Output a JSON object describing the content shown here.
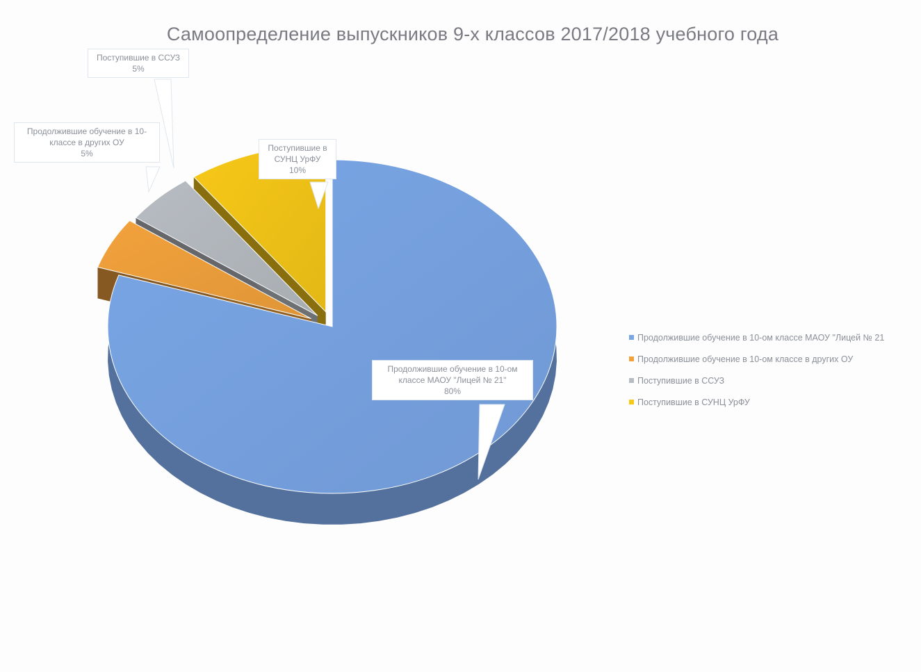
{
  "chart_data": {
    "type": "pie",
    "title": "Самоопределение выпускников 9-х классов 2017/2018  учебного года",
    "three_d": true,
    "slices": [
      {
        "label": "Продолжившие обучение в 10-ом классе МАОУ \"Лицей № 21\"",
        "value": 80,
        "value_label": "80%",
        "color": "#7aa6e6"
      },
      {
        "label": "Продолжившие обучение в 10-ом классе в других ОУ",
        "value": 5,
        "value_label": "5%",
        "color": "#f2a23c"
      },
      {
        "label": "Поступившие в ССУЗ",
        "value": 5,
        "value_label": "5%",
        "color": "#b7bcc2"
      },
      {
        "label": "Поступившие в СУНЦ УрФУ",
        "value": 10,
        "value_label": "10%",
        "color": "#f7c818"
      }
    ],
    "data_labels": [
      {
        "line1": "Продолжившие обучение в 10-ом",
        "line2": "классе МАОУ \"Лицей № 21\"",
        "line3": "80%"
      },
      {
        "line1": "Продолжившие обучение в 10-",
        "line2": "классе в других ОУ",
        "line3": "5%"
      },
      {
        "line1": "Поступившие в ССУЗ",
        "line2": "",
        "line3": "5%"
      },
      {
        "line1": "Поступившие в",
        "line2": "СУНЦ УрФУ",
        "line3": "10%"
      }
    ],
    "legend": {
      "position": "right",
      "items": [
        "Продолжившие обучение в 10-ом классе МАОУ \"Лицей № 21",
        "Продолжившие обучение в 10-ом классе в других ОУ",
        "Поступившие в ССУЗ",
        "Поступившие в СУНЦ УрФУ"
      ]
    }
  }
}
